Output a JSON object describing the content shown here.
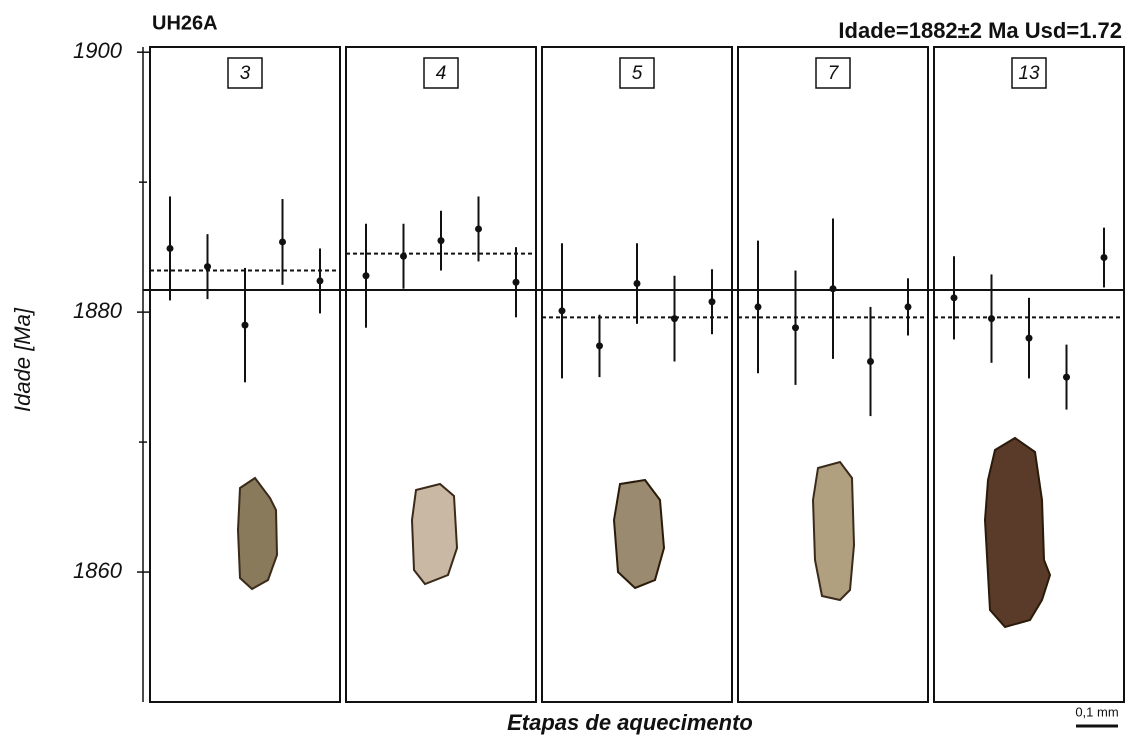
{
  "chart_data": {
    "type": "errorbar",
    "title": "UH26A",
    "subtitle": "Idade=1882±2 Ma  Usd=1.72",
    "ylabel": "Idade [Ma]",
    "xlabel": "Etapas de aquecimento",
    "scale_label": "0,1 mm",
    "ylim": [
      1850,
      1900.4
    ],
    "yticks": [
      1860,
      1880,
      1900
    ],
    "yminorticks": [
      1870,
      1890
    ],
    "reference_line": 1881.7,
    "color": "#111111",
    "panels": [
      {
        "label": "3",
        "values": [
          1884.9,
          1883.5,
          1879.0,
          1885.4,
          1882.4
        ],
        "errors": [
          4.0,
          2.5,
          4.4,
          3.3,
          2.5
        ],
        "mean": 1883.2
      },
      {
        "label": "4",
        "values": [
          1882.8,
          1884.3,
          1885.5,
          1886.4,
          1882.3
        ],
        "errors": [
          4.0,
          2.5,
          2.3,
          2.5,
          2.7
        ],
        "mean": 1884.5
      },
      {
        "label": "5",
        "values": [
          1880.1,
          1877.4,
          1882.2,
          1879.5,
          1880.8
        ],
        "errors": [
          5.2,
          2.4,
          3.1,
          3.3,
          2.5
        ],
        "mean": 1879.6
      },
      {
        "label": "7",
        "values": [
          1880.4,
          1878.8,
          1881.8,
          1876.2,
          1880.4
        ],
        "errors": [
          5.1,
          4.4,
          5.4,
          4.2,
          2.2
        ],
        "mean": 1879.6
      },
      {
        "label": "13",
        "values": [
          1881.1,
          1879.5,
          1878.0,
          1875.0,
          1884.2
        ],
        "errors": [
          3.2,
          3.4,
          3.1,
          2.5,
          2.3
        ],
        "mean": 1879.6
      }
    ]
  }
}
